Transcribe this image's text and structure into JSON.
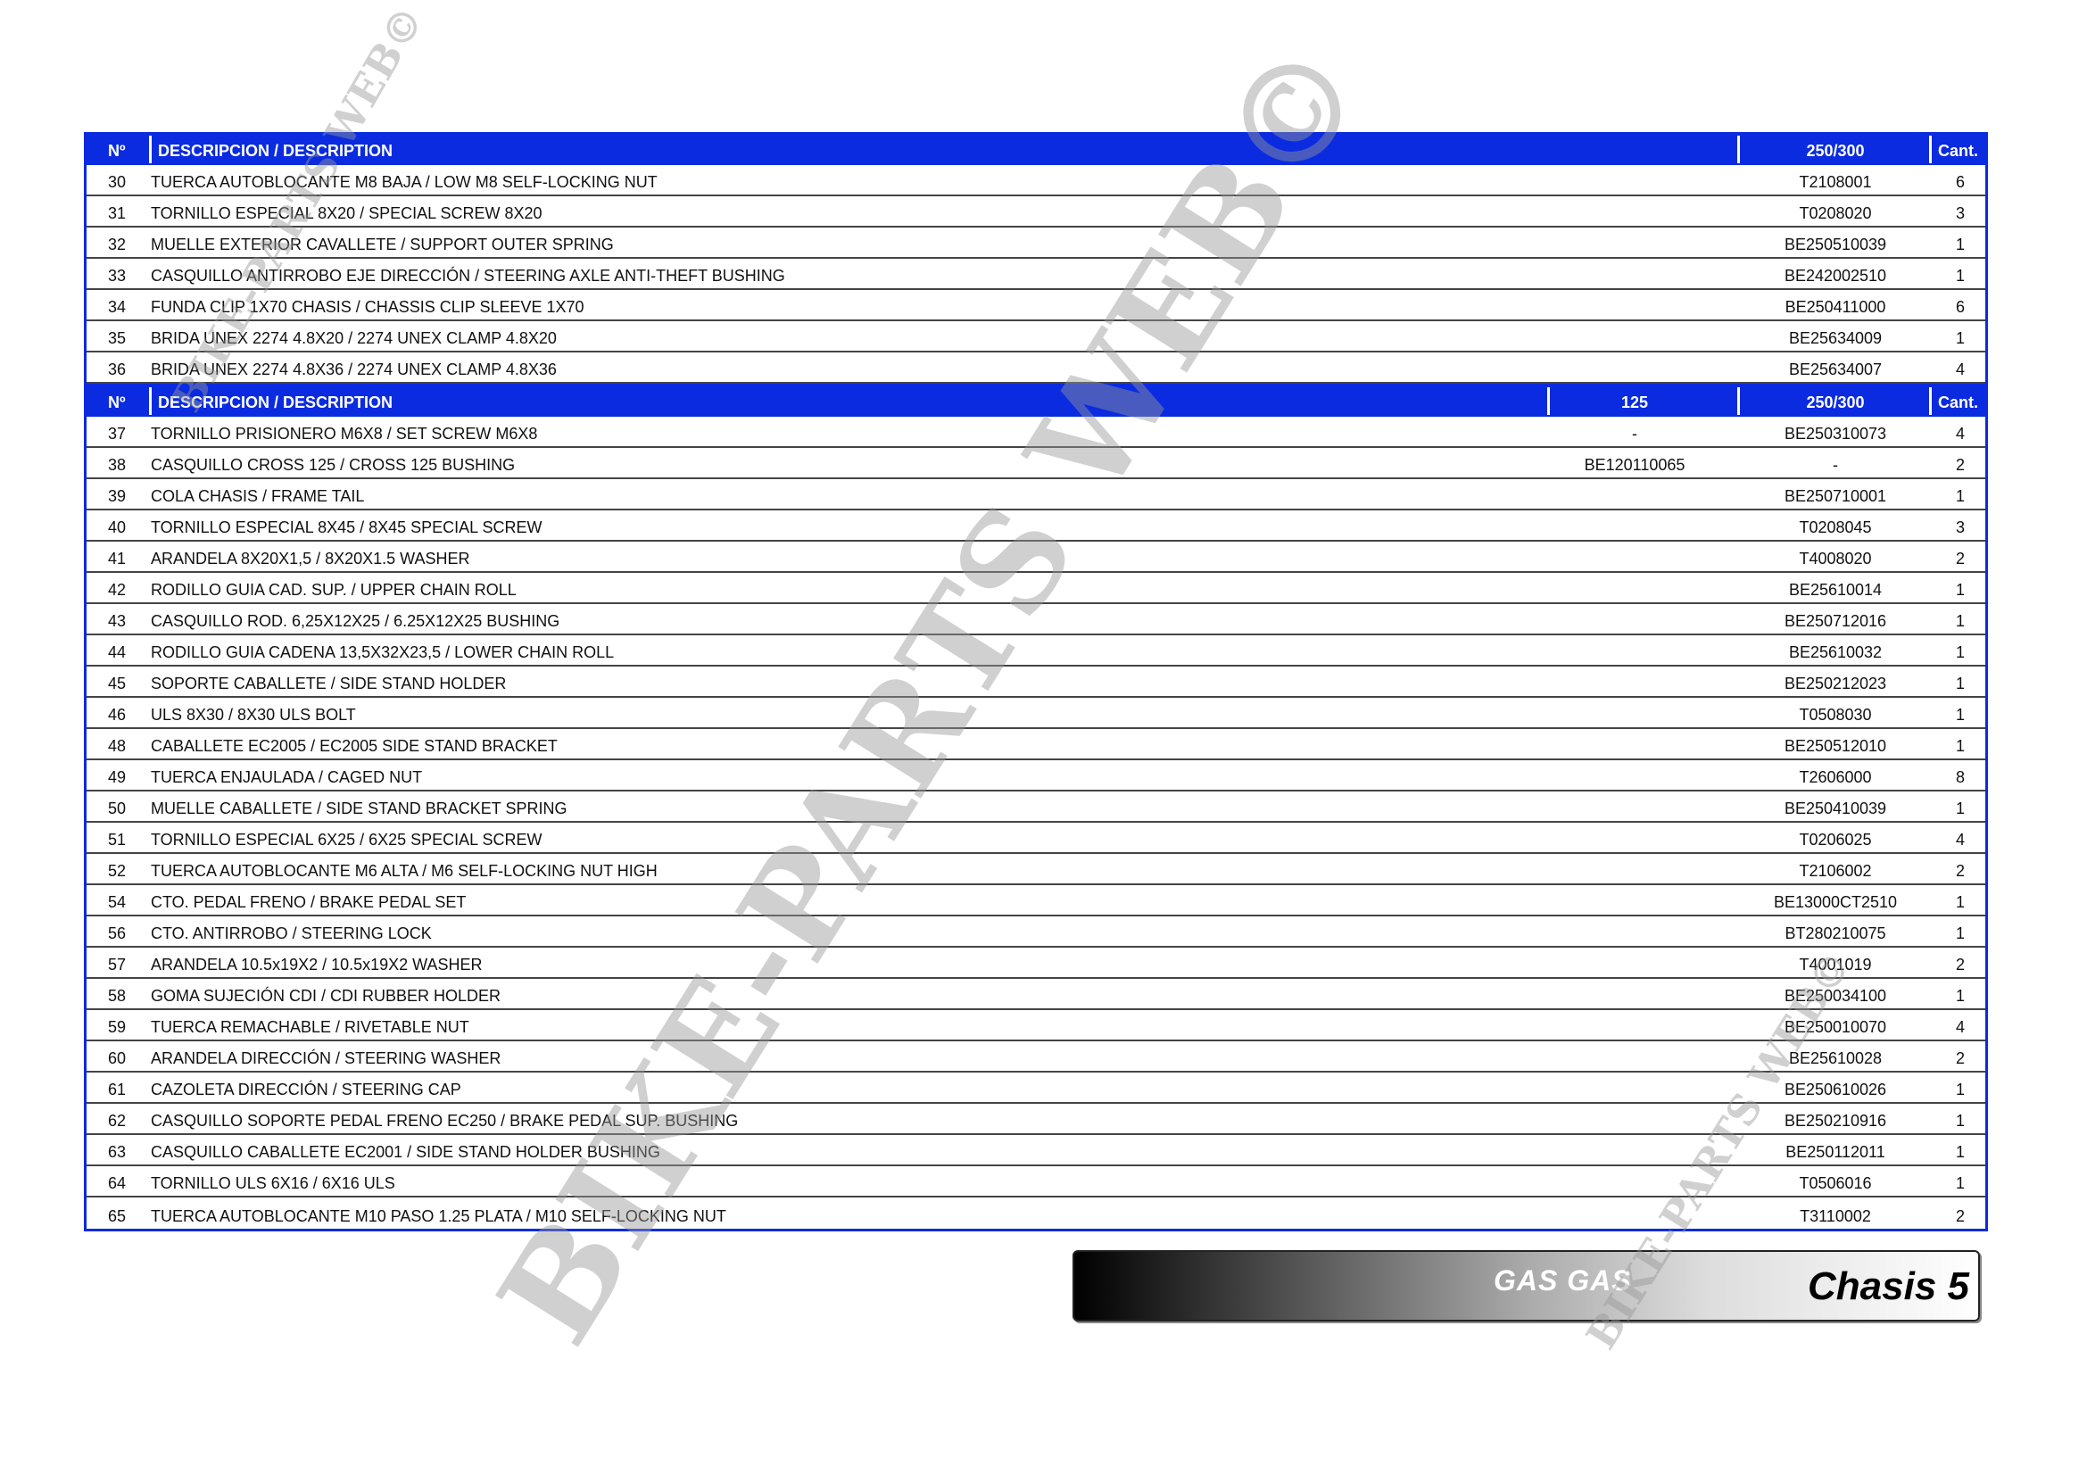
{
  "headers": {
    "first": {
      "no": "Nº",
      "desc": "DESCRIPCION / DESCRIPTION",
      "m125": "",
      "m250": "250/300",
      "qty": "Cant."
    },
    "second": {
      "no": "Nº",
      "desc": "DESCRIPCION / DESCRIPTION",
      "m125": "125",
      "m250": "250/300",
      "qty": "Cant."
    }
  },
  "section1": [
    {
      "no": "30",
      "desc": "TUERCA AUTOBLOCANTE M8 BAJA / LOW M8 SELF-LOCKING NUT",
      "m125": "",
      "m250": "T2108001",
      "qty": "6"
    },
    {
      "no": "31",
      "desc": "TORNILLO ESPECIAL 8X20 / SPECIAL SCREW 8X20",
      "m125": "",
      "m250": "T0208020",
      "qty": "3"
    },
    {
      "no": "32",
      "desc": "MUELLE EXTERIOR CAVALLETE / SUPPORT OUTER SPRING",
      "m125": "",
      "m250": "BE250510039",
      "qty": "1"
    },
    {
      "no": "33",
      "desc": "CASQUILLO ANTIRROBO EJE DIRECCIÓN / STEERING AXLE ANTI-THEFT BUSHING",
      "m125": "",
      "m250": "BE242002510",
      "qty": "1"
    },
    {
      "no": "34",
      "desc": "FUNDA CLIP 1X70 CHASIS / CHASSIS CLIP SLEEVE 1X70",
      "m125": "",
      "m250": "BE250411000",
      "qty": "6"
    },
    {
      "no": "35",
      "desc": "BRIDA UNEX 2274 4.8X20 / 2274 UNEX CLAMP 4.8X20",
      "m125": "",
      "m250": "BE25634009",
      "qty": "1"
    },
    {
      "no": "36",
      "desc": "BRIDA UNEX 2274 4.8X36 / 2274 UNEX CLAMP 4.8X36",
      "m125": "",
      "m250": "BE25634007",
      "qty": "4"
    }
  ],
  "section2": [
    {
      "no": "37",
      "desc": "TORNILLO PRISIONERO M6X8 / SET SCREW M6X8",
      "m125": "-",
      "m250": "BE250310073",
      "qty": "4"
    },
    {
      "no": "38",
      "desc": "CASQUILLO CROSS 125 / CROSS 125 BUSHING",
      "m125": "BE120110065",
      "m250": "-",
      "qty": "2"
    },
    {
      "no": "39",
      "desc": "COLA CHASIS / FRAME TAIL",
      "m125": "",
      "m250": "BE250710001",
      "qty": "1"
    },
    {
      "no": "40",
      "desc": "TORNILLO ESPECIAL 8X45 / 8X45 SPECIAL SCREW",
      "m125": "",
      "m250": "T0208045",
      "qty": "3"
    },
    {
      "no": "41",
      "desc": "ARANDELA 8X20X1,5 / 8X20X1.5 WASHER",
      "m125": "",
      "m250": "T4008020",
      "qty": "2"
    },
    {
      "no": "42",
      "desc": "RODILLO GUIA CAD. SUP. / UPPER CHAIN ROLL",
      "m125": "",
      "m250": "BE25610014",
      "qty": "1"
    },
    {
      "no": "43",
      "desc": "CASQUILLO ROD. 6,25X12X25 / 6.25X12X25 BUSHING",
      "m125": "",
      "m250": "BE250712016",
      "qty": "1"
    },
    {
      "no": "44",
      "desc": "RODILLO GUIA CADENA 13,5X32X23,5 / LOWER CHAIN ROLL",
      "m125": "",
      "m250": "BE25610032",
      "qty": "1"
    },
    {
      "no": "45",
      "desc": "SOPORTE CABALLETE / SIDE STAND HOLDER",
      "m125": "",
      "m250": "BE250212023",
      "qty": "1"
    },
    {
      "no": "46",
      "desc": "ULS 8X30 / 8X30 ULS BOLT",
      "m125": "",
      "m250": "T0508030",
      "qty": "1"
    },
    {
      "no": "48",
      "desc": "CABALLETE EC2005 / EC2005 SIDE STAND BRACKET",
      "m125": "",
      "m250": "BE250512010",
      "qty": "1"
    },
    {
      "no": "49",
      "desc": "TUERCA ENJAULADA / CAGED NUT",
      "m125": "",
      "m250": "T2606000",
      "qty": "8"
    },
    {
      "no": "50",
      "desc": "MUELLE CABALLETE / SIDE STAND BRACKET SPRING",
      "m125": "",
      "m250": "BE250410039",
      "qty": "1"
    },
    {
      "no": "51",
      "desc": "TORNILLO ESPECIAL 6X25 / 6X25 SPECIAL SCREW",
      "m125": "",
      "m250": "T0206025",
      "qty": "4"
    },
    {
      "no": "52",
      "desc": "TUERCA AUTOBLOCANTE M6 ALTA / M6 SELF-LOCKING NUT HIGH",
      "m125": "",
      "m250": "T2106002",
      "qty": "2"
    },
    {
      "no": "54",
      "desc": "CTO. PEDAL FRENO / BRAKE PEDAL SET",
      "m125": "",
      "m250": "BE13000CT2510",
      "qty": "1"
    },
    {
      "no": "56",
      "desc": "CTO.  ANTIRROBO / STEERING LOCK",
      "m125": "",
      "m250": "BT280210075",
      "qty": "1"
    },
    {
      "no": "57",
      "desc": "ARANDELA 10.5x19X2 / 10.5x19X2 WASHER",
      "m125": "",
      "m250": "T4001019",
      "qty": "2"
    },
    {
      "no": "58",
      "desc": "GOMA SUJECIÓN CDI / CDI RUBBER HOLDER",
      "m125": "",
      "m250": "BE250034100",
      "qty": "1"
    },
    {
      "no": "59",
      "desc": "TUERCA REMACHABLE / RIVETABLE NUT",
      "m125": "",
      "m250": "BE250010070",
      "qty": "4"
    },
    {
      "no": "60",
      "desc": "ARANDELA DIRECCIÓN / STEERING WASHER",
      "m125": "",
      "m250": "BE25610028",
      "qty": "2"
    },
    {
      "no": "61",
      "desc": "CAZOLETA DIRECCIÓN / STEERING CAP",
      "m125": "",
      "m250": "BE250610026",
      "qty": "1"
    },
    {
      "no": "62",
      "desc": "CASQUILLO SOPORTE PEDAL FRENO EC250 / BRAKE PEDAL SUP. BUSHING",
      "m125": "",
      "m250": "BE250210916",
      "qty": "1"
    },
    {
      "no": "63",
      "desc": "CASQUILLO CABALLETE EC2001 / SIDE STAND HOLDER BUSHING",
      "m125": "",
      "m250": "BE250112011",
      "qty": "1"
    },
    {
      "no": "64",
      "desc": "TORNILLO ULS 6X16 / 6X16 ULS",
      "m125": "",
      "m250": "T0506016",
      "qty": "1"
    },
    {
      "no": "65",
      "desc": "TUERCA AUTOBLOCANTE M10 PASO 1.25 PLATA / M10 SELF-LOCKING NUT",
      "m125": "",
      "m250": "T3110002",
      "qty": "2"
    }
  ],
  "footer": {
    "brand": "GAS GAS",
    "section": "Chasis 5"
  },
  "watermark": "BIKE-PARTS WEB©",
  "colors": {
    "header_bg": "#0a2be0",
    "header_text": "#ffffff",
    "watermark": "#969696"
  }
}
